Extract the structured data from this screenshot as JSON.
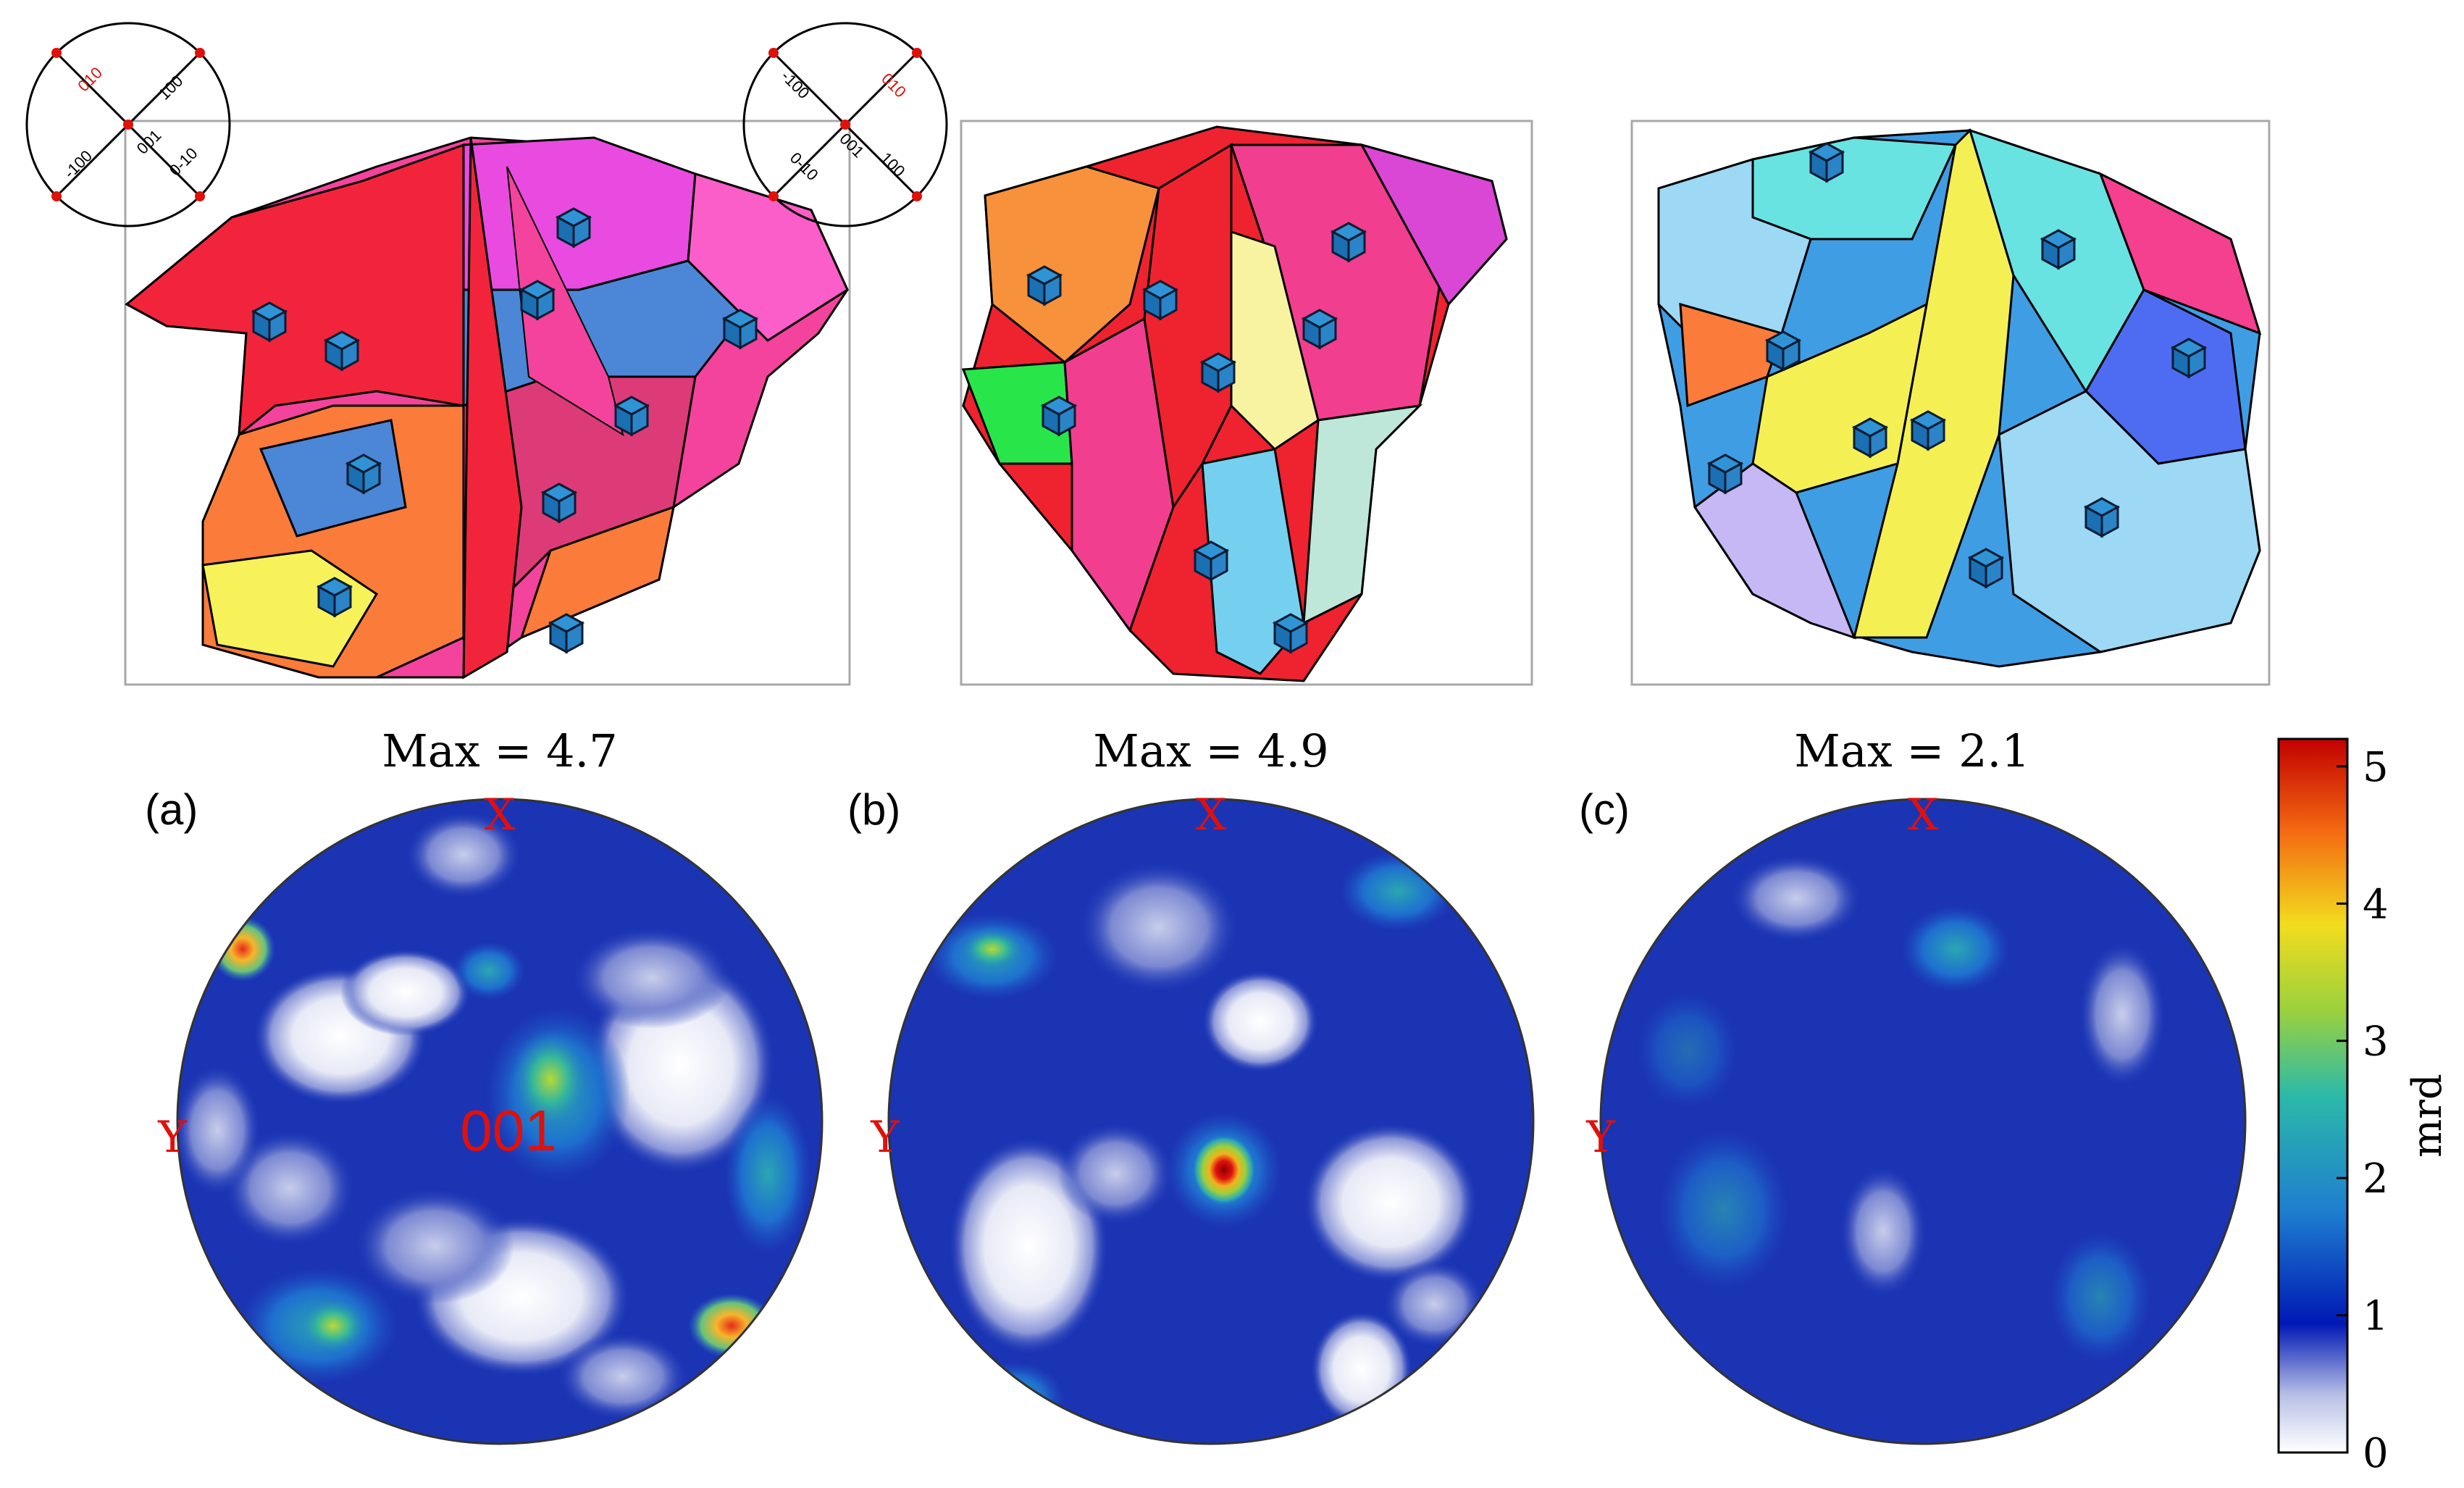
{
  "panels": [
    {
      "label": "(a)",
      "max_label": "Max = 4.7",
      "x_label": "X",
      "y_label": "Y",
      "center_label": "001"
    },
    {
      "label": "(b)",
      "max_label": "Max = 4.9",
      "x_label": "X",
      "y_label": "Y"
    },
    {
      "label": "(c)",
      "max_label": "Max = 2.1",
      "x_label": "X",
      "y_label": "Y"
    }
  ],
  "orientation_keys": [
    {
      "top": "010",
      "center": "001",
      "right": "100",
      "bottom": "0-10",
      "left": "-100"
    },
    {
      "top": "010",
      "center": "001",
      "right": "100",
      "bottom": "0-10",
      "left": "-100"
    }
  ],
  "colorbar": {
    "label": "mrd",
    "ticks": [
      "0",
      "1",
      "2",
      "3",
      "4",
      "5"
    ],
    "min": 0,
    "max": 5.2,
    "colors": [
      "#ffffff",
      "#b9c0e6",
      "#0019b5",
      "#1f7fd0",
      "#2bb9a8",
      "#9bd13d",
      "#f2dc1e",
      "#f46a12",
      "#c20000"
    ]
  },
  "colors": {
    "ebsd_a": [
      "#f2243c",
      "#f4439c",
      "#fb7b3a",
      "#e94be0",
      "#4c86d6",
      "#f7f25a",
      "#dd3a78",
      "#fb5ec8"
    ],
    "ebsd_b": [
      "#ef2230",
      "#bfe7d9",
      "#f13e8e",
      "#f8f3a0",
      "#f7913c",
      "#75d0f0",
      "#28e64a",
      "#d947d4"
    ],
    "ebsd_c": [
      "#3f9de3",
      "#69e2e2",
      "#f4f054",
      "#9dd8f4",
      "#f53f8f",
      "#4e6cf2",
      "#c5b8f5",
      "#fb7b3a"
    ]
  }
}
